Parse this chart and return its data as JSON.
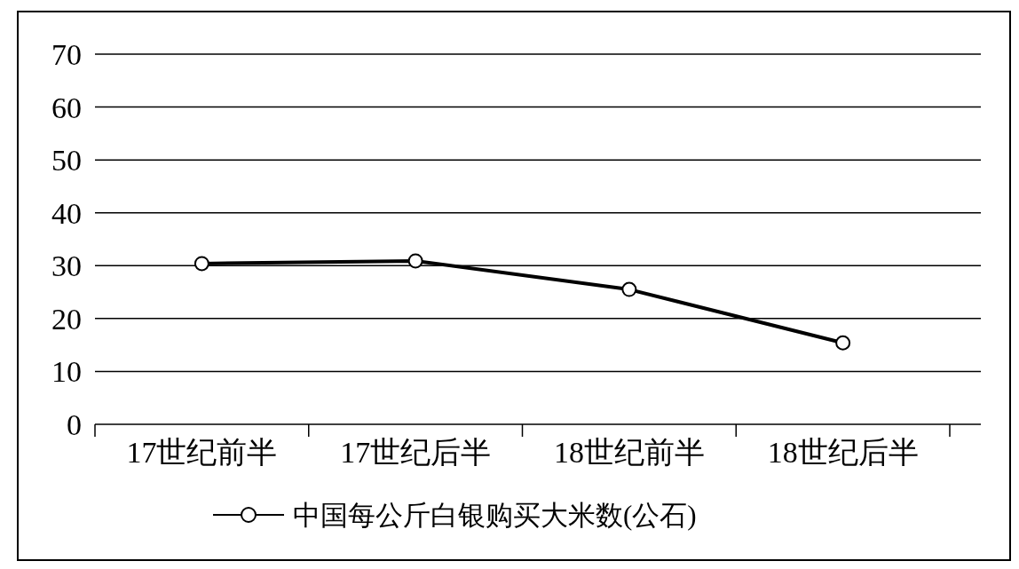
{
  "chart_data": {
    "type": "line",
    "categories": [
      "17世纪前半",
      "17世纪后半",
      "18世纪前半",
      "18世纪后半"
    ],
    "series": [
      {
        "name": "中国每公斤白银购买大米数(公石)",
        "color": "#000000",
        "values": [
          30.4,
          30.9,
          25.5,
          15.4
        ]
      }
    ],
    "ylim": [
      0,
      70
    ],
    "yticks": [
      0,
      10,
      20,
      30,
      40,
      50,
      60,
      70
    ],
    "grid": "y",
    "legend": "bottom",
    "marker": "circle",
    "line_style": "solid"
  }
}
